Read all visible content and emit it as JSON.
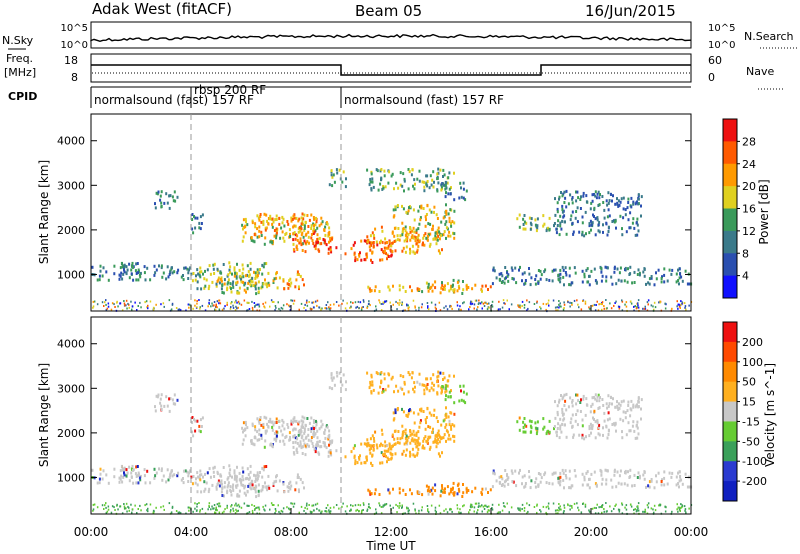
{
  "header": {
    "station": "Adak West (fitACF)",
    "beam": "Beam 05",
    "date": "16/Jun/2015"
  },
  "params": {
    "nsky_label": "N.Sky",
    "nsearch_label": "N.Search",
    "freq_label_1": "Freq.",
    "freq_label_2": "[MHz]",
    "nave_label": "Nave",
    "cpid_label": "CPID",
    "nsky_ticks": [
      "10^5",
      "10^0"
    ],
    "nsearch_ticks": [
      "10^5",
      "10^0"
    ],
    "freq_ticks": [
      "18",
      "8"
    ],
    "nave_ticks": [
      "60",
      "0"
    ]
  },
  "cpid_segments": [
    {
      "start_h": 0,
      "end_h": 4.1,
      "label": "normalsound (fast) 157 RF"
    },
    {
      "start_h": 4.1,
      "end_h": 10.0,
      "label": "rbsp 200 RF"
    },
    {
      "start_h": 10.0,
      "end_h": 24,
      "label": "normalsound (fast) 157 RF"
    }
  ],
  "chart_data": [
    {
      "type": "heatmap",
      "title": "Power",
      "ylabel": "Slant Range [km]",
      "ylim": [
        180,
        4600
      ],
      "y_ticks": [
        "1000",
        "2000",
        "3000",
        "4000"
      ],
      "colorbar_label": "Power [dB]",
      "colorbar_ticks": [
        "28",
        "24",
        "20",
        "16",
        "12",
        "8",
        "4"
      ],
      "colors": [
        "#1010ff",
        "#2a4fb0",
        "#3a7a8a",
        "#3a9a5a",
        "#e0d020",
        "#ff9a00",
        "#ff5a00",
        "#ee1010"
      ]
    },
    {
      "type": "heatmap",
      "title": "Velocity",
      "ylabel": "Slant Range [km]",
      "xlabel": "Time UT",
      "ylim": [
        180,
        4600
      ],
      "y_ticks": [
        "1000",
        "2000",
        "3000",
        "4000"
      ],
      "colorbar_label": "Velocity [m s^-1]",
      "colorbar_ticks": [
        "200",
        "100",
        "50",
        "15",
        "-15",
        "-50",
        "-100",
        "-200"
      ],
      "x_ticks": [
        "00:00",
        "04:00",
        "08:00",
        "12:00",
        "16:00",
        "20:00",
        "00:00"
      ],
      "colors": [
        "#1020c0",
        "#2a3ad0",
        "#3aa05a",
        "#66cc33",
        "#c8c8c8",
        "#ffb020",
        "#ff8a00",
        "#ff4a00",
        "#ee1010"
      ]
    }
  ]
}
